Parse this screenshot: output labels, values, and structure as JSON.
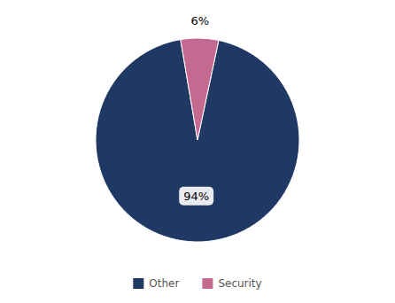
{
  "chart_data": {
    "type": "pie",
    "categories": [
      "Other",
      "Security"
    ],
    "values": [
      94,
      6
    ],
    "value_labels": [
      "94%",
      "6%"
    ],
    "colors": [
      "#1f3864",
      "#c4698f"
    ],
    "data_labels": true,
    "legend": "bottom"
  }
}
